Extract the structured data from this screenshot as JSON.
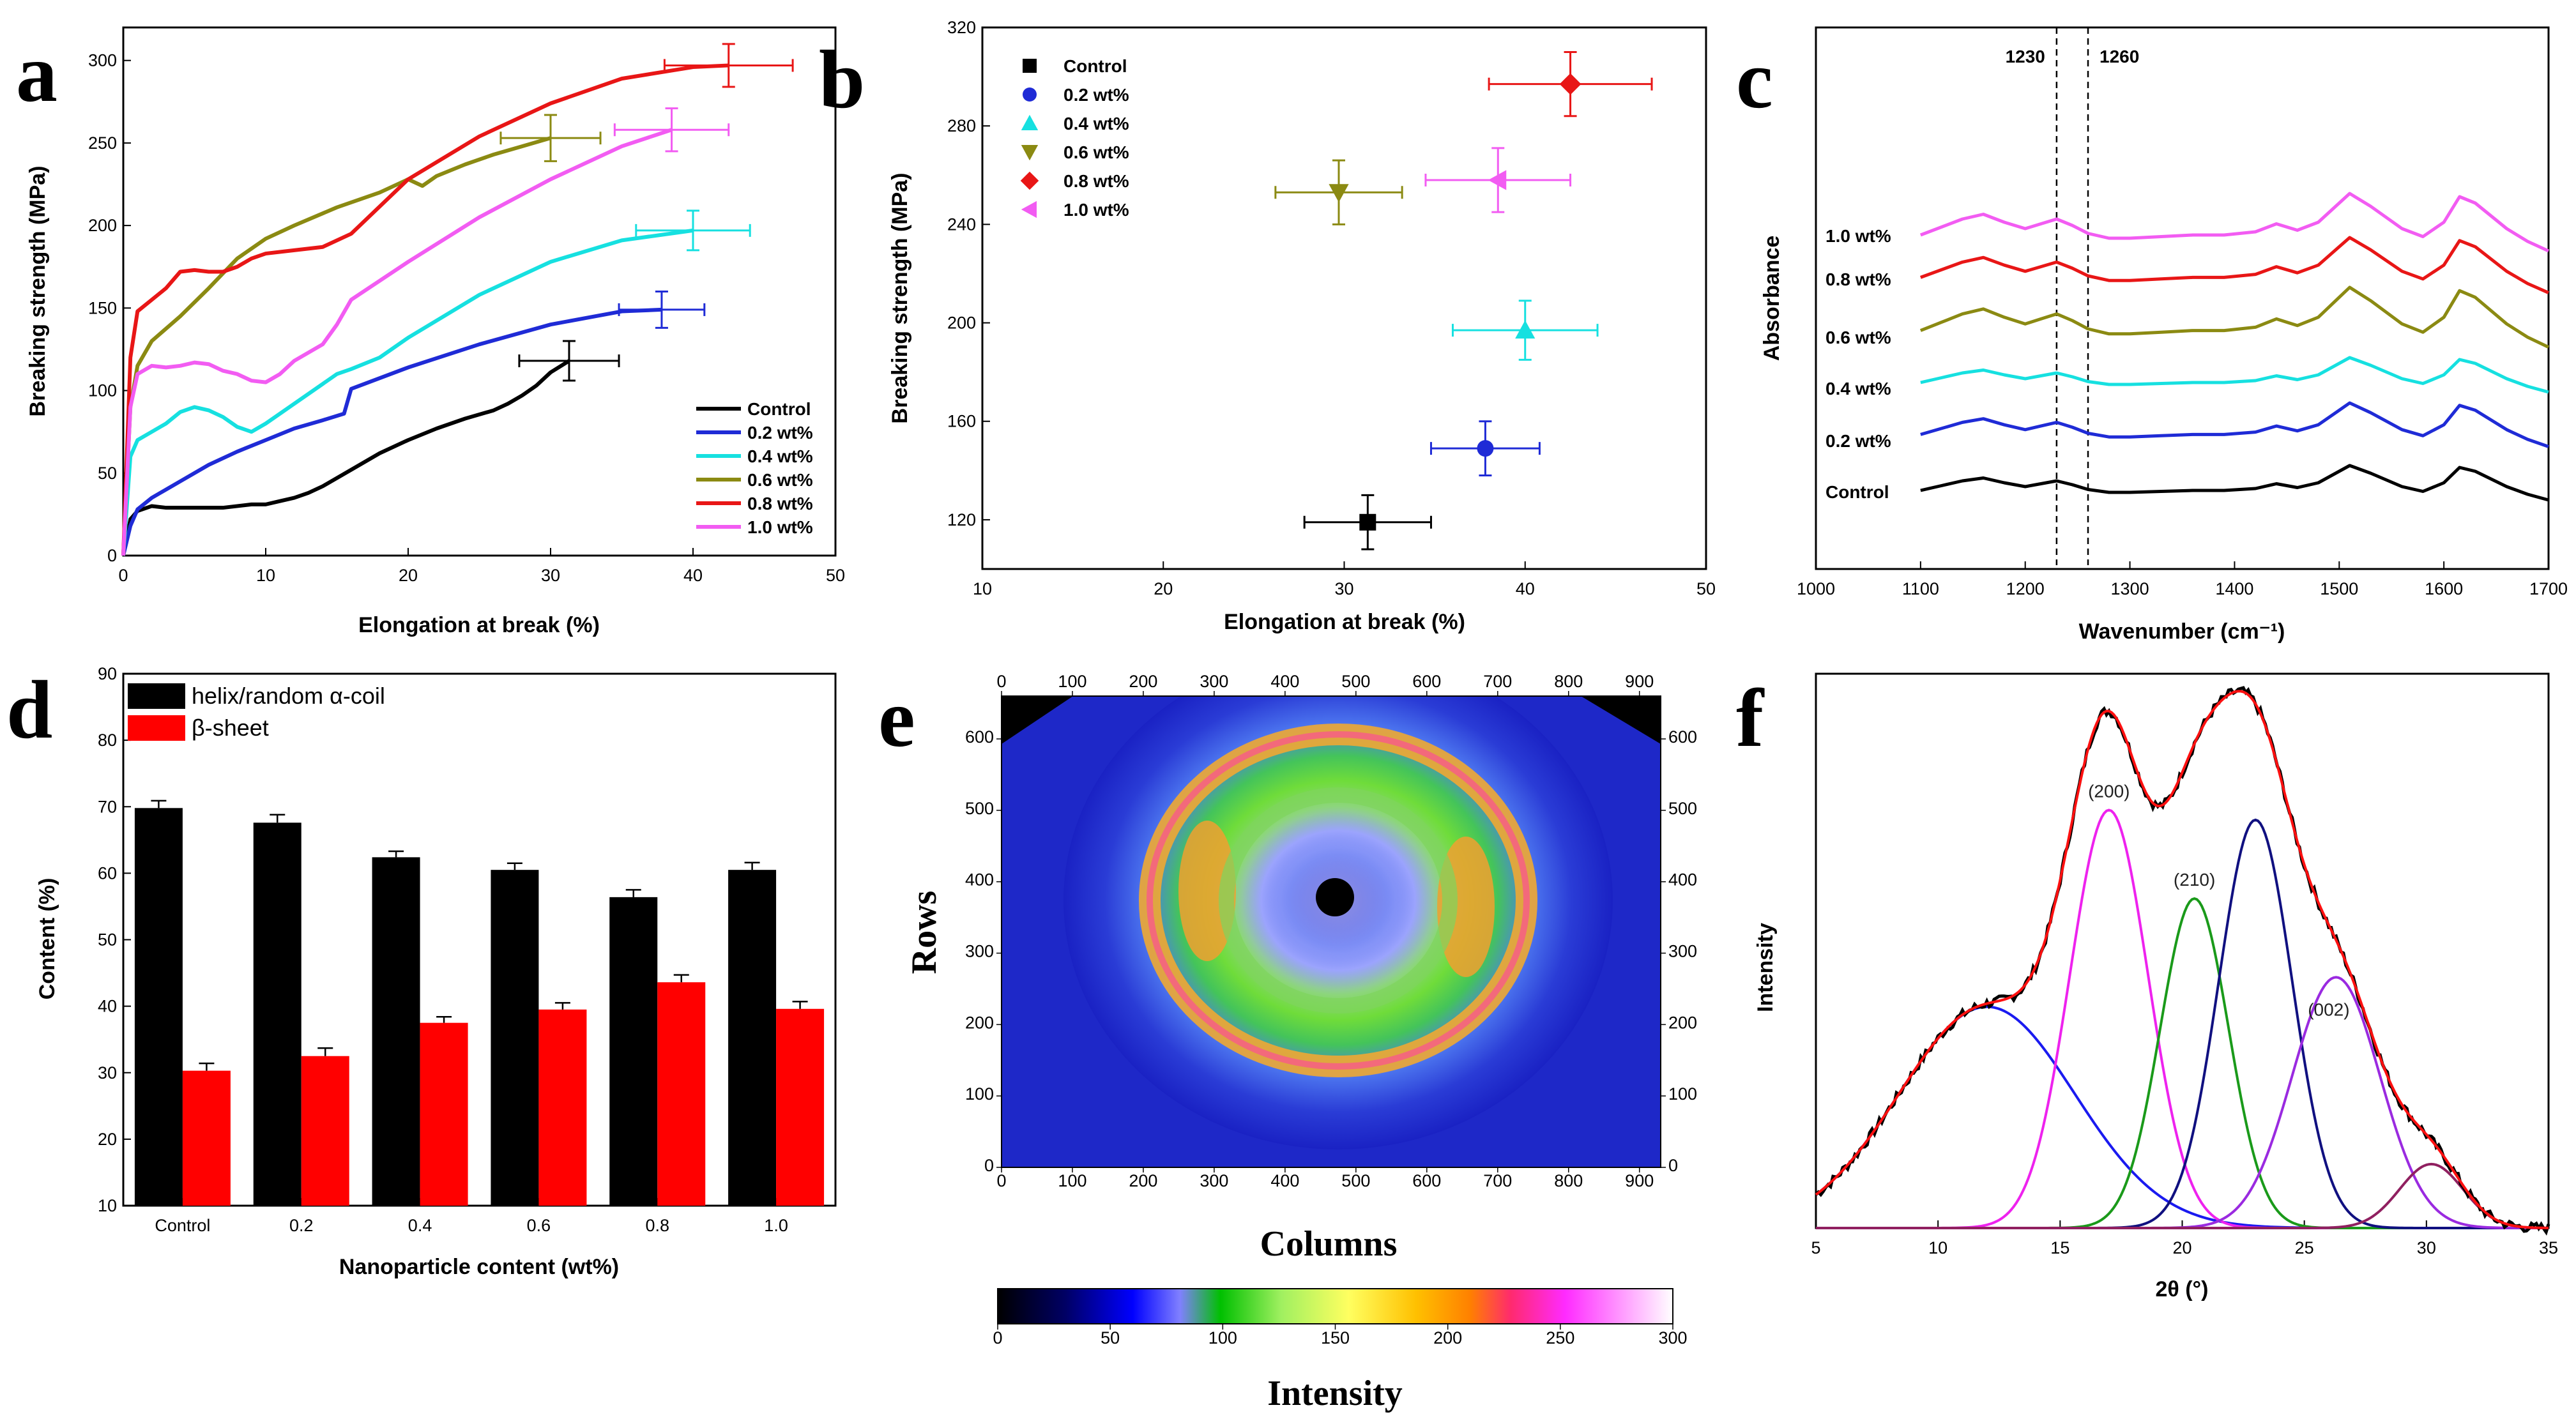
{
  "panels": [
    "a",
    "b",
    "c",
    "d",
    "e",
    "f"
  ],
  "colors": {
    "control": "#000000",
    "p02": "#1f2bd6",
    "p04": "#16e0e0",
    "p06": "#8b8a12",
    "p08": "#e81616",
    "p10": "#f25cf2"
  },
  "chart_data": [
    {
      "id": "a",
      "type": "line",
      "xlabel": "Elongation at break (%)",
      "ylabel": "Breaking strength (MPa)",
      "xlim": [
        0,
        50
      ],
      "ylim": [
        0,
        320
      ],
      "xticks": [
        0,
        10,
        20,
        30,
        40,
        50
      ],
      "yticks": [
        0,
        50,
        100,
        150,
        200,
        250,
        300
      ],
      "legend": "bottom-right",
      "series": [
        {
          "name": "Control",
          "x": [
            0,
            0.5,
            1,
            2,
            3,
            5,
            7,
            9,
            10,
            11,
            12,
            13,
            14,
            16,
            18,
            20,
            22,
            24,
            26,
            27,
            28,
            29,
            30,
            31.3
          ],
          "y": [
            0,
            22,
            27,
            30,
            29,
            29,
            29,
            31,
            31,
            33,
            35,
            38,
            42,
            52,
            62,
            70,
            77,
            83,
            88,
            92,
            97,
            103,
            111,
            118
          ],
          "err_x": 3.5,
          "err_y": 12
        },
        {
          "name": "0.2 wt%",
          "x": [
            0,
            0.5,
            1,
            2,
            4,
            6,
            8,
            10,
            12,
            14,
            15.5,
            16,
            20,
            25,
            30,
            35,
            37.8
          ],
          "y": [
            0,
            18,
            28,
            35,
            45,
            55,
            63,
            70,
            77,
            82,
            86,
            101,
            114,
            128,
            140,
            148,
            149
          ],
          "err_x": 3,
          "err_y": 11
        },
        {
          "name": "0.4 wt%",
          "x": [
            0,
            0.5,
            1,
            2,
            3,
            4,
            5,
            6,
            7,
            8,
            9,
            10,
            11,
            12,
            13,
            14,
            15,
            16,
            18,
            20,
            25,
            30,
            35,
            40
          ],
          "y": [
            0,
            60,
            70,
            75,
            80,
            87,
            90,
            88,
            84,
            78,
            75,
            80,
            86,
            92,
            98,
            104,
            110,
            113,
            120,
            132,
            158,
            178,
            191,
            197
          ],
          "err_x": 4,
          "err_y": 12
        },
        {
          "name": "0.6 wt%",
          "x": [
            0,
            0.5,
            1,
            2,
            4,
            6,
            8,
            10,
            12,
            15,
            18,
            20,
            21,
            22,
            24,
            26,
            28,
            30
          ],
          "y": [
            0,
            90,
            115,
            130,
            145,
            162,
            180,
            192,
            200,
            211,
            220,
            228,
            224,
            230,
            237,
            243,
            248,
            253
          ],
          "err_x": 3.5,
          "err_y": 14
        },
        {
          "name": "0.8 wt%",
          "x": [
            0,
            0.5,
            1,
            2,
            3,
            4,
            5,
            6,
            7,
            8,
            9,
            10,
            12,
            14,
            16,
            20,
            25,
            30,
            35,
            40,
            42.5
          ],
          "y": [
            0,
            120,
            148,
            155,
            162,
            172,
            173,
            172,
            172,
            175,
            180,
            183,
            185,
            187,
            195,
            228,
            254,
            274,
            289,
            296,
            297
          ],
          "err_x": 4.5,
          "err_y": 13
        },
        {
          "name": "1.0 wt%",
          "x": [
            0,
            0.5,
            1,
            2,
            3,
            4,
            5,
            6,
            7,
            8,
            9,
            10,
            11,
            12,
            14,
            15,
            16,
            20,
            25,
            30,
            35,
            38.5
          ],
          "y": [
            0,
            90,
            110,
            115,
            114,
            115,
            117,
            116,
            112,
            110,
            106,
            105,
            110,
            118,
            128,
            140,
            155,
            178,
            205,
            228,
            248,
            258
          ],
          "err_x": 4,
          "err_y": 13
        }
      ]
    },
    {
      "id": "b",
      "type": "scatter",
      "xlabel": "Elongation at break (%)",
      "ylabel": "Breaking strength (MPa)",
      "xlim": [
        10,
        50
      ],
      "ylim": [
        100,
        320
      ],
      "xticks": [
        10,
        20,
        30,
        40,
        50
      ],
      "yticks": [
        120,
        160,
        200,
        240,
        280,
        320
      ],
      "legend": "top-left",
      "series": [
        {
          "name": "Control",
          "marker": "square",
          "x": 31.3,
          "y": 119,
          "err_x": 3.5,
          "err_y": 11
        },
        {
          "name": "0.2 wt%",
          "marker": "circle",
          "x": 37.8,
          "y": 149,
          "err_x": 3,
          "err_y": 11
        },
        {
          "name": "0.4 wt%",
          "marker": "triangle-up",
          "x": 40,
          "y": 197,
          "err_x": 4,
          "err_y": 12
        },
        {
          "name": "0.6 wt%",
          "marker": "triangle-down",
          "x": 29.7,
          "y": 253,
          "err_x": 3.5,
          "err_y": 13
        },
        {
          "name": "0.8 wt%",
          "marker": "diamond",
          "x": 42.5,
          "y": 297,
          "err_x": 4.5,
          "err_y": 13
        },
        {
          "name": "1.0 wt%",
          "marker": "triangle-left",
          "x": 38.5,
          "y": 258,
          "err_x": 4,
          "err_y": 13
        }
      ]
    },
    {
      "id": "c",
      "type": "line",
      "xlabel": "Wavenumber (cm⁻¹)",
      "ylabel": "Absorbance",
      "xlim": [
        1000,
        1700
      ],
      "xticks": [
        1000,
        1100,
        1200,
        1300,
        1400,
        1500,
        1600,
        1700
      ],
      "markers": [
        "1230",
        "1260"
      ],
      "marker_x": [
        1230,
        1260
      ],
      "offsets": [
        0,
        1,
        2,
        3,
        4,
        5
      ],
      "series_labels": [
        "Control",
        "0.2 wt%",
        "0.4 wt%",
        "0.6 wt%",
        "0.8 wt%",
        "1.0 wt%"
      ],
      "x": [
        1100,
        1120,
        1140,
        1160,
        1180,
        1200,
        1215,
        1230,
        1245,
        1260,
        1280,
        1300,
        1330,
        1360,
        1390,
        1420,
        1440,
        1460,
        1480,
        1500,
        1510,
        1530,
        1560,
        1580,
        1600,
        1615,
        1630,
        1660,
        1680,
        1700
      ],
      "base": [
        0.2,
        0.45,
        0.7,
        0.85,
        0.6,
        0.4,
        0.55,
        0.7,
        0.5,
        0.25,
        0.1,
        0.1,
        0.15,
        0.2,
        0.2,
        0.3,
        0.55,
        0.35,
        0.6,
        1.2,
        1.5,
        1.1,
        0.4,
        0.15,
        0.6,
        1.4,
        1.2,
        0.4,
        0.0,
        -0.3
      ]
    },
    {
      "id": "d",
      "type": "bar",
      "xlabel": "Nanoparticle content (wt%)",
      "ylabel": "Content (%)",
      "categories": [
        "Control",
        "0.2",
        "0.4",
        "0.6",
        "0.8",
        "1.0"
      ],
      "ylim": [
        10,
        90
      ],
      "yticks": [
        10,
        20,
        30,
        40,
        50,
        60,
        70,
        80,
        90
      ],
      "legend": "top-left",
      "series": [
        {
          "name": "helix/random α-coil",
          "values": [
            69.8,
            67.6,
            62.4,
            60.5,
            56.4,
            60.5
          ],
          "err": [
            1.1,
            1.2,
            0.9,
            1.0,
            1.1,
            1.1
          ]
        },
        {
          "name": "β-sheet",
          "values": [
            30.3,
            32.5,
            37.5,
            39.5,
            43.6,
            39.6
          ],
          "err": [
            1.1,
            1.2,
            0.9,
            1.0,
            1.1,
            1.1
          ]
        }
      ]
    },
    {
      "id": "e",
      "type": "heatmap",
      "xlabel": "Columns",
      "ylabel": "Rows",
      "colorbar_label": "Intensity",
      "xticks": [
        0,
        100,
        200,
        300,
        400,
        500,
        600,
        700,
        800,
        900
      ],
      "yticks": [
        0,
        100,
        200,
        300,
        400,
        500,
        600
      ],
      "colorbar_ticks": [
        0,
        50,
        100,
        150,
        200,
        250,
        300
      ]
    },
    {
      "id": "f",
      "type": "line",
      "xlabel": "2θ (°)",
      "ylabel": "Intensity",
      "xlim": [
        5,
        35
      ],
      "xticks": [
        5,
        10,
        15,
        20,
        25,
        30,
        35
      ],
      "peak_labels": [
        "(200)",
        "(210)",
        "(002)"
      ],
      "peaks": [
        {
          "center": 12,
          "width": 3.6,
          "height": 0.45,
          "color": "#1a1af0"
        },
        {
          "center": 17.0,
          "width": 1.6,
          "height": 0.85,
          "color": "#ee22ee",
          "label_index": 0
        },
        {
          "center": 20.5,
          "width": 1.4,
          "height": 0.67,
          "color": "#1a9a1a",
          "label_index": 1
        },
        {
          "center": 23.0,
          "width": 1.5,
          "height": 0.83,
          "color": "#101080"
        },
        {
          "center": 26.3,
          "width": 1.8,
          "height": 0.51,
          "color": "#9a2ae0",
          "label_index": 2
        },
        {
          "center": 30.2,
          "width": 1.3,
          "height": 0.13,
          "color": "#902060"
        }
      ]
    }
  ]
}
